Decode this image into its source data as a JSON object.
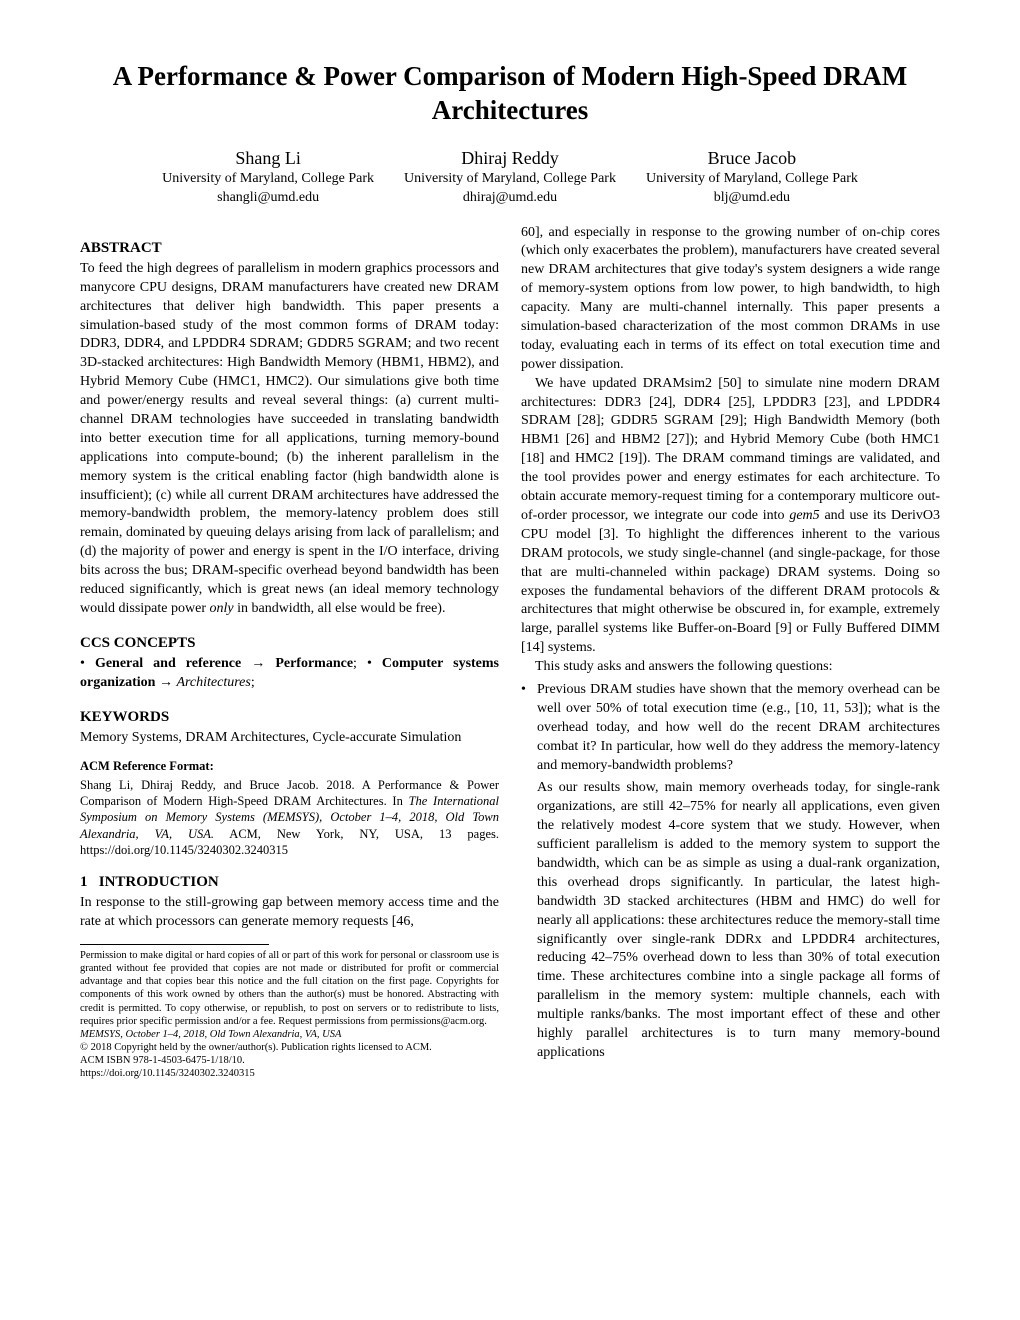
{
  "title": "A Performance & Power Comparison of Modern High-Speed DRAM Architectures",
  "authors": [
    {
      "name": "Shang Li",
      "affil": "University of Maryland, College Park",
      "email": "shangli@umd.edu"
    },
    {
      "name": "Dhiraj Reddy",
      "affil": "University of Maryland, College Park",
      "email": "dhiraj@umd.edu"
    },
    {
      "name": "Bruce Jacob",
      "affil": "University of Maryland, College Park",
      "email": "blj@umd.edu"
    }
  ],
  "left": {
    "abstract_title": "ABSTRACT",
    "abstract": "To feed the high degrees of parallelism in modern graphics processors and manycore CPU designs, DRAM manufacturers have created new DRAM architectures that deliver high bandwidth. This paper presents a simulation-based study of the most common forms of DRAM today: DDR3, DDR4, and LPDDR4 SDRAM; GDDR5 SGRAM; and two recent 3D-stacked architectures: High Bandwidth Memory (HBM1, HBM2), and Hybrid Memory Cube (HMC1, HMC2). Our simulations give both time and power/energy results and reveal several things: (a) current multi-channel DRAM technologies have succeeded in translating bandwidth into better execution time for all applications, turning memory-bound applications into compute-bound; (b) the inherent parallelism in the memory system is the critical enabling factor (high bandwidth alone is insufficient); (c) while all current DRAM architectures have addressed the memory-bandwidth problem, the memory-latency problem does still remain, dominated by queuing delays arising from lack of parallelism; and (d) the majority of power and energy is spent in the I/O interface, driving bits across the bus; DRAM-specific overhead beyond bandwidth has been reduced significantly, which is great news (an ideal memory technology would dissipate power only in bandwidth, all else would be free).",
    "ccs_title": "CCS CONCEPTS",
    "ccs_line": "• General and reference → Performance; • Computer systems organization → Architectures;",
    "keywords_title": "KEYWORDS",
    "keywords": "Memory Systems, DRAM Architectures, Cycle-accurate Simulation",
    "acmref_title": "ACM Reference Format:",
    "acmref_body": "Shang Li, Dhiraj Reddy, and Bruce Jacob. 2018. A Performance & Power Comparison of Modern High-Speed DRAM Architectures. In The International Symposium on Memory Systems (MEMSYS), October 1–4, 2018, Old Town Alexandria, VA, USA. ACM, New York, NY, USA, 13 pages. https://doi.org/10.1145/3240302.3240315",
    "intro_num": "1",
    "intro_title": "INTRODUCTION",
    "intro_para": "In response to the still-growing gap between memory access time and the rate at which processors can generate memory requests [46,",
    "perm": "Permission to make digital or hard copies of all or part of this work for personal or classroom use is granted without fee provided that copies are not made or distributed for profit or commercial advantage and that copies bear this notice and the full citation on the first page. Copyrights for components of this work owned by others than the author(s) must be honored. Abstracting with credit is permitted. To copy otherwise, or republish, to post on servers or to redistribute to lists, requires prior specific permission and/or a fee. Request permissions from permissions@acm.org.",
    "conf_line": "MEMSYS, October 1–4, 2018, Old Town Alexandria, VA, USA",
    "copyright": "© 2018 Copyright held by the owner/author(s). Publication rights licensed to ACM.",
    "isbn": "ACM ISBN 978-1-4503-6475-1/18/10.",
    "doi": "https://doi.org/10.1145/3240302.3240315"
  },
  "right": {
    "p1": "60], and especially in response to the growing number of on-chip cores (which only exacerbates the problem), manufacturers have created several new DRAM architectures that give today's system designers a wide range of memory-system options from low power, to high bandwidth, to high capacity. Many are multi-channel internally. This paper presents a simulation-based characterization of the most common DRAMs in use today, evaluating each in terms of its effect on total execution time and power dissipation.",
    "p2": "We have updated DRAMsim2 [50] to simulate nine modern DRAM architectures: DDR3 [24], DDR4 [25], LPDDR3 [23], and LPDDR4 SDRAM [28]; GDDR5 SGRAM [29]; High Bandwidth Memory (both HBM1 [26] and HBM2 [27]); and Hybrid Memory Cube (both HMC1 [18] and HMC2 [19]). The DRAM command timings are validated, and the tool provides power and energy estimates for each architecture. To obtain accurate memory-request timing for a contemporary multicore out-of-order processor, we integrate our code into gem5 and use its DerivO3 CPU model [3]. To highlight the differences inherent to the various DRAM protocols, we study single-channel (and single-package, for those that are multi-channeled within package) DRAM systems. Doing so exposes the fundamental behaviors of the different DRAM protocols & architectures that might otherwise be obscured in, for example, extremely large, parallel systems like Buffer-on-Board [9] or Fully Buffered DIMM [14] systems.",
    "p3": "This study asks and answers the following questions:",
    "bullet1a": "Previous DRAM studies have shown that the memory overhead can be well over 50% of total execution time (e.g., [10, 11, 53]); what is the overhead today, and how well do the recent DRAM architectures combat it? In particular, how well do they address the memory-latency and memory-bandwidth problems?",
    "bullet1b": "As our results show, main memory overheads today, for single-rank organizations, are still 42–75% for nearly all applications, even given the relatively modest 4-core system that we study. However, when sufficient parallelism is added to the memory system to support the bandwidth, which can be as simple as using a dual-rank organization, this overhead drops significantly. In particular, the latest high-bandwidth 3D stacked architectures (HBM and HMC) do well for nearly all applications: these architectures reduce the memory-stall time significantly over single-rank DDRx and LPDDR4 architectures, reducing 42–75% overhead down to less than 30% of total execution time. These architectures combine into a single package all forms of parallelism in the memory system: multiple channels, each with multiple ranks/banks. The most important effect of these and other highly parallel architectures is to turn many memory-bound applications"
  }
}
